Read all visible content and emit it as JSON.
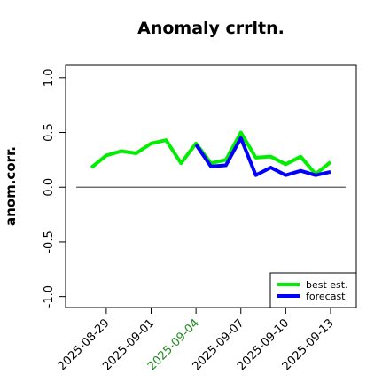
{
  "chart_data": {
    "type": "line",
    "title": "Anomaly crrltn.",
    "ylabel": "anom.corr.",
    "x": [
      "2025-08-28",
      "2025-08-29",
      "2025-08-30",
      "2025-08-31",
      "2025-09-01",
      "2025-09-02",
      "2025-09-03",
      "2025-09-04",
      "2025-09-05",
      "2025-09-06",
      "2025-09-07",
      "2025-09-08",
      "2025-09-09",
      "2025-09-10",
      "2025-09-11",
      "2025-09-12",
      "2025-09-13"
    ],
    "series": [
      {
        "name": "best est.",
        "color": "#00ee00",
        "values": [
          0.18,
          0.29,
          0.33,
          0.31,
          0.4,
          0.43,
          0.22,
          0.4,
          0.22,
          0.25,
          0.5,
          0.27,
          0.28,
          0.21,
          0.28,
          0.12,
          0.23
        ]
      },
      {
        "name": "forecast",
        "color": "#0000ff",
        "values": [
          null,
          null,
          null,
          null,
          null,
          null,
          null,
          0.39,
          0.19,
          0.2,
          0.45,
          0.11,
          0.18,
          0.11,
          0.15,
          0.11,
          0.14
        ]
      }
    ],
    "xlim": [
      "2025-08-27",
      "2025-09-14"
    ],
    "xticks": [
      "2025-08-29",
      "2025-09-01",
      "2025-09-04",
      "2025-09-07",
      "2025-09-10",
      "2025-09-13"
    ],
    "xtick_colors": [
      "#000000",
      "#000000",
      "#228b22",
      "#000000",
      "#000000",
      "#000000"
    ],
    "ylim": [
      -1.1,
      1.12
    ],
    "yticks": [
      {
        "value": -1,
        "label": "-1.0"
      },
      -0.5,
      {
        "value": 0,
        "label": "0.0"
      },
      0.5,
      {
        "value": 1,
        "label": "1.0"
      }
    ],
    "reference_line": 0,
    "legend": "bottom-right"
  }
}
